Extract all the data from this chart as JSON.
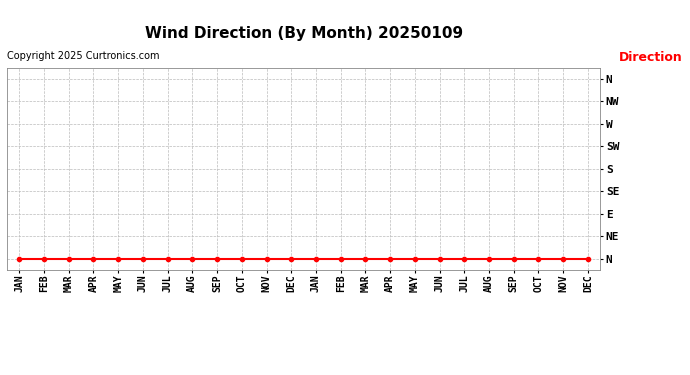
{
  "title": "Wind Direction (By Month) 20250109",
  "copyright": "Copyright 2025 Curtronics.com",
  "legend_label": "Direction",
  "legend_color": "#ff0000",
  "background_color": "#ffffff",
  "grid_color": "#bbbbbb",
  "ytick_labels": [
    "N",
    "NE",
    "E",
    "SE",
    "S",
    "SW",
    "W",
    "NW",
    "N"
  ],
  "ytick_values": [
    0,
    1,
    2,
    3,
    4,
    5,
    6,
    7,
    8
  ],
  "xtick_labels": [
    "JAN",
    "FEB",
    "MAR",
    "APR",
    "MAY",
    "JUN",
    "JUL",
    "AUG",
    "SEP",
    "OCT",
    "NOV",
    "DEC",
    "JAN",
    "FEB",
    "MAR",
    "APR",
    "MAY",
    "JUN",
    "JUL",
    "AUG",
    "SEP",
    "OCT",
    "NOV",
    "DEC"
  ],
  "data_x": [
    0,
    1,
    2,
    3,
    4,
    5,
    6,
    7,
    8,
    9,
    10,
    11,
    12,
    13,
    14,
    15,
    16,
    17,
    18,
    19,
    20,
    21,
    22,
    23
  ],
  "data_y": [
    0,
    0,
    0,
    0,
    0,
    0,
    0,
    0,
    0,
    0,
    0,
    0,
    0,
    0,
    0,
    0,
    0,
    0,
    0,
    0,
    0,
    0,
    0,
    0
  ],
  "line_color": "#ff0000",
  "marker_color": "#ff0000",
  "marker": "o",
  "marker_size": 3,
  "line_width": 1.5,
  "xlim": [
    -0.5,
    23.5
  ],
  "ylim": [
    -0.5,
    8.5
  ],
  "title_fontsize": 11,
  "copyright_fontsize": 7,
  "legend_fontsize": 9,
  "tick_fontsize": 7,
  "ytick_fontsize": 8
}
